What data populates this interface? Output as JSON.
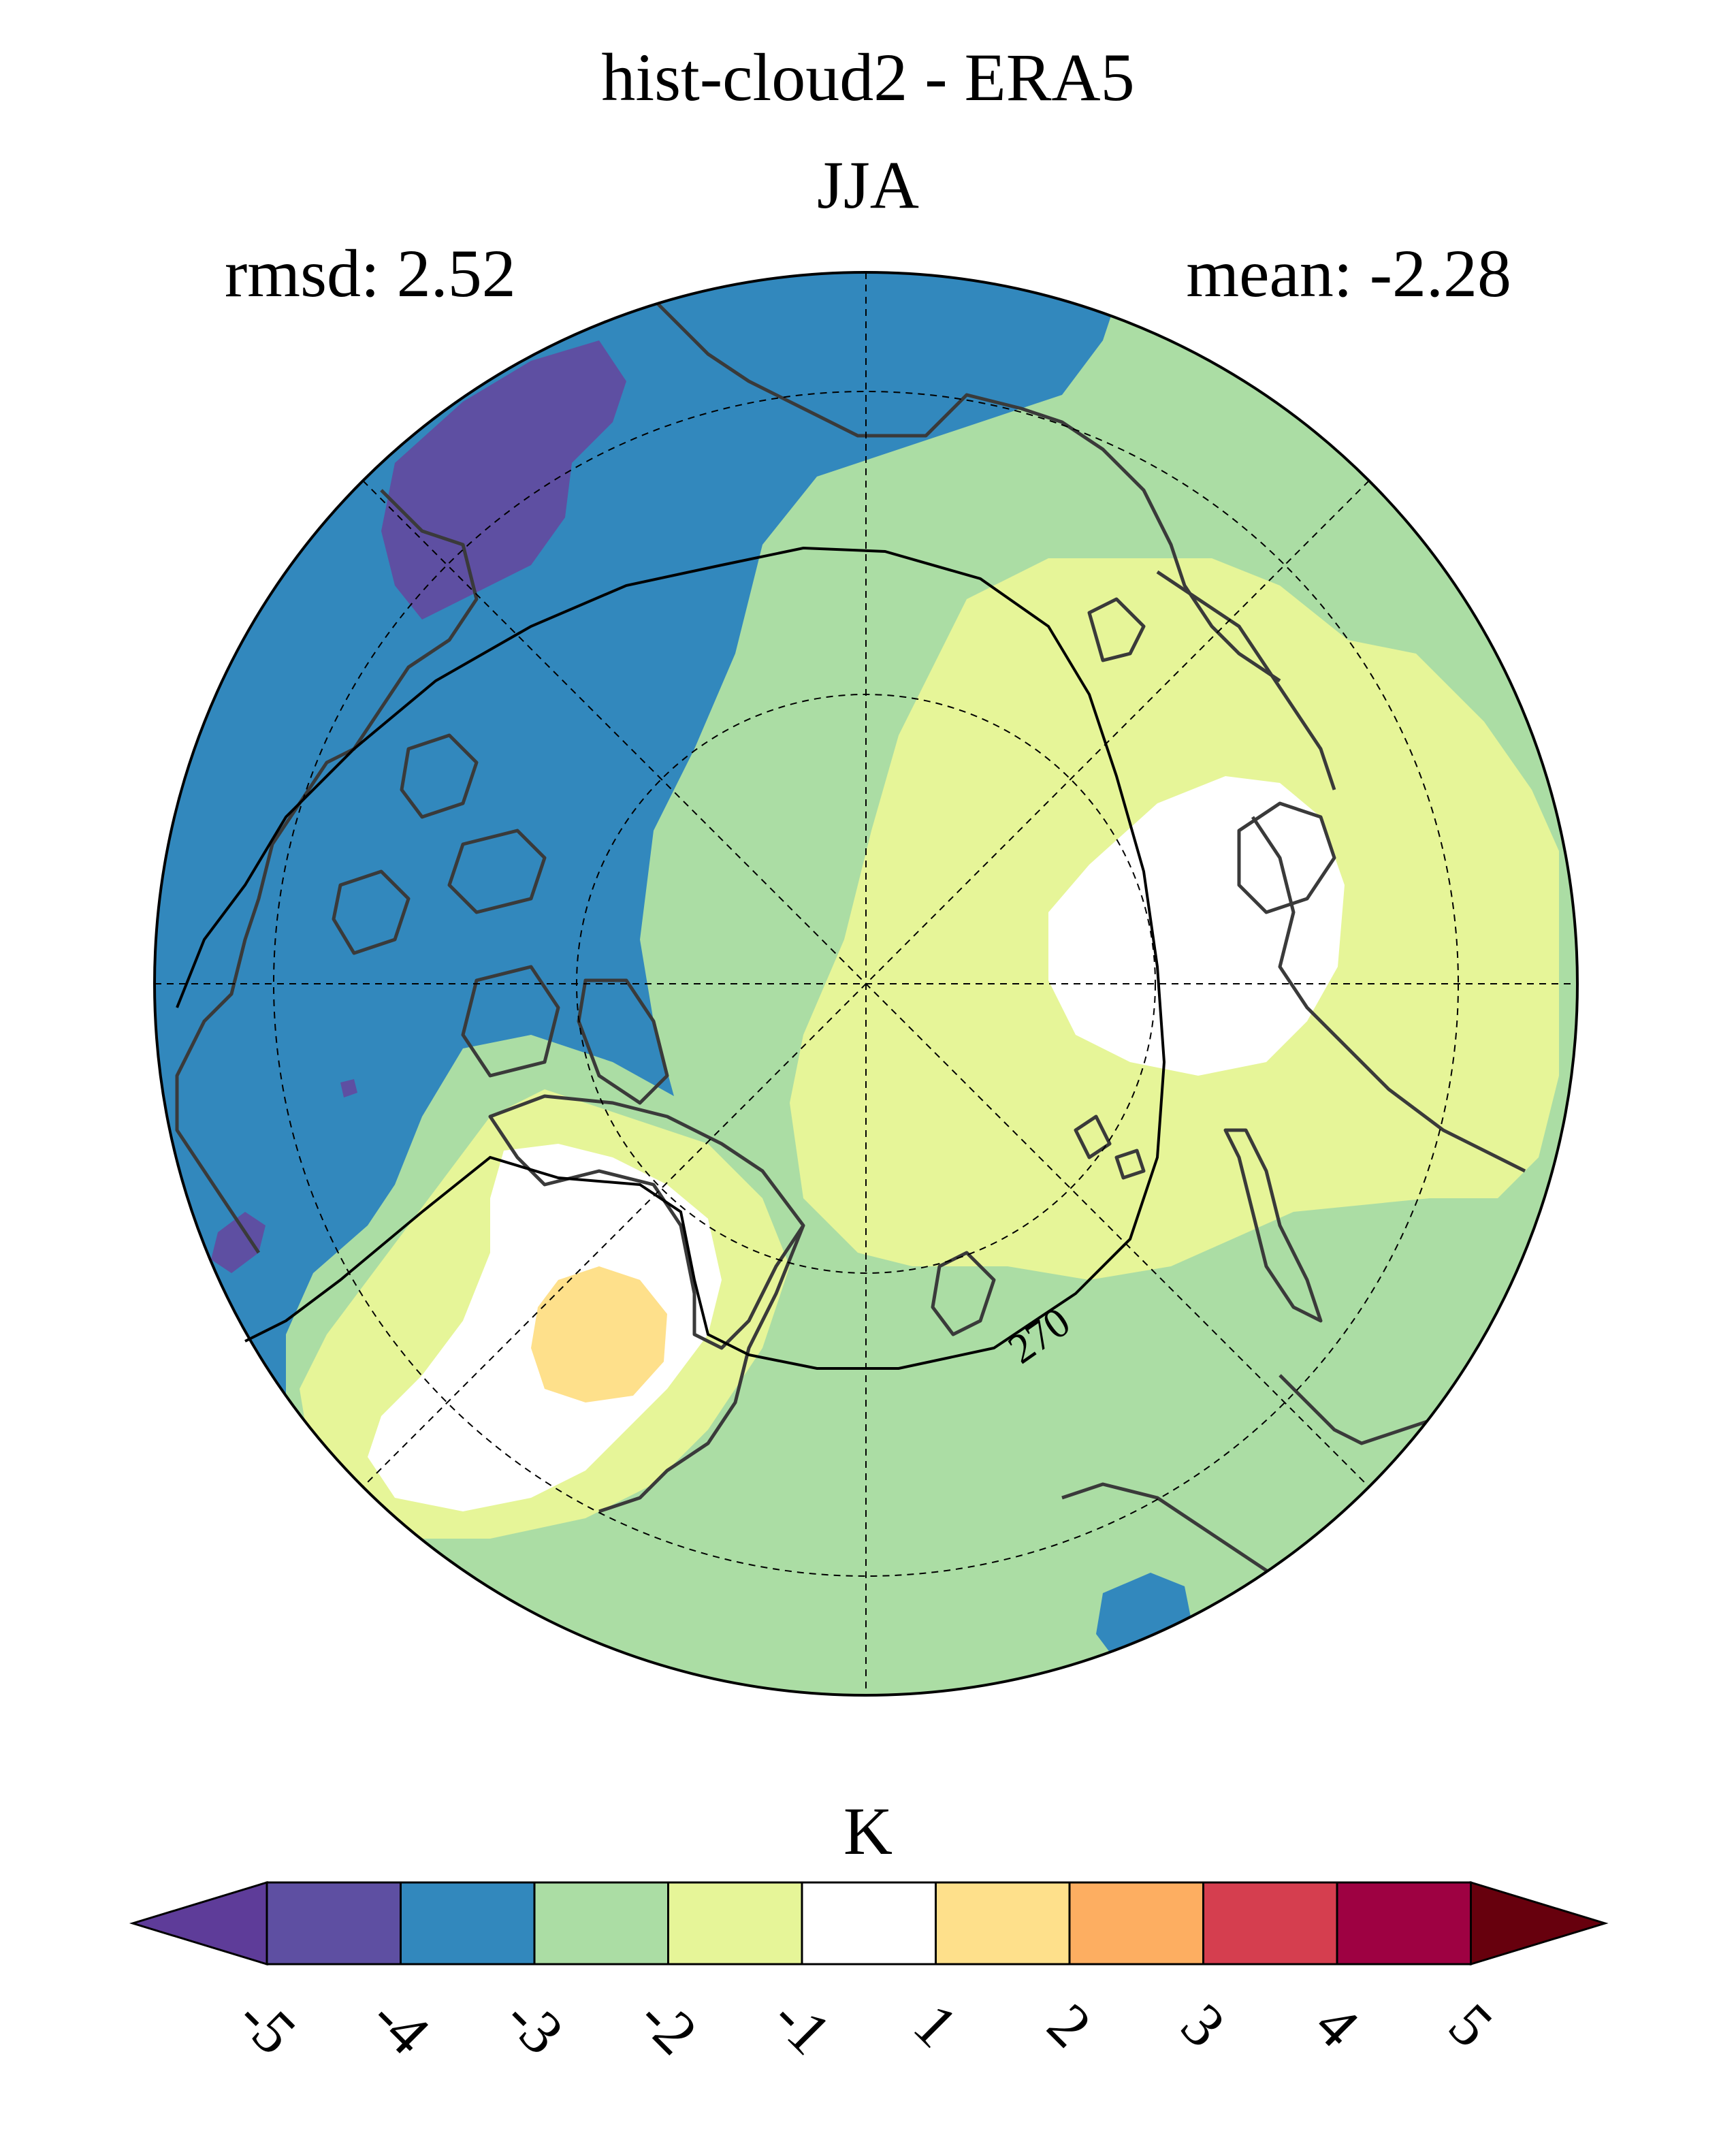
{
  "title": "hist-cloud2 - ERA5",
  "subtitle": "JJA",
  "stats": {
    "rmsd": "rmsd: 2.52",
    "mean": "mean: -2.28"
  },
  "contour_label": "270",
  "colorbar": {
    "unit": "K",
    "ticks": [
      "-5",
      "-4",
      "-3",
      "-2",
      "-1",
      "1",
      "2",
      "3",
      "4",
      "5"
    ],
    "colors": [
      "#5e4fa2",
      "#3288bd",
      "#abdda4",
      "#e6f598",
      "#ffffff",
      "#fee08b",
      "#fdae61",
      "#d53e4f",
      "#9e0142"
    ],
    "under_color": "#5e3c99",
    "over_color": "#67000d"
  },
  "region_colors": {
    "lt_minus4": "#5e4fa2",
    "minus4_minus3": "#3288bd",
    "minus3_minus2": "#abdda4",
    "minus2_minus1": "#e6f598",
    "minus1_1": "#ffffff",
    "p1_p2": "#fee08b"
  }
}
